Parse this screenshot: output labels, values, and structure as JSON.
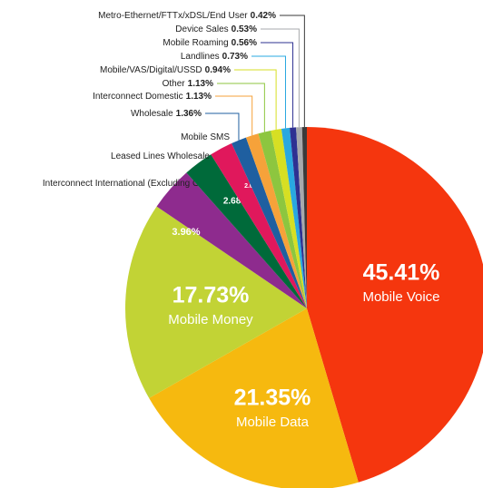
{
  "chart_data": {
    "type": "pie",
    "categories": [
      "Mobile Voice",
      "Mobile Data",
      "Mobile Money",
      "Interconnect International (Excluding ONA)",
      "Leased Lines Wholesale",
      "Mobile SMS",
      "Wholesale",
      "Interconnect Domestic",
      "Other",
      "Mobile/VAS/Digital/USSD",
      "Landlines",
      "Mobile Roaming",
      "Device Sales",
      "Metro-Ethernet/FTTx/xDSL/End User"
    ],
    "values": [
      45.41,
      21.35,
      17.73,
      3.96,
      2.68,
      2.06,
      1.36,
      1.13,
      1.13,
      0.94,
      0.73,
      0.56,
      0.53,
      0.42
    ],
    "value_labels": [
      "45.41%",
      "21.35%",
      "17.73%",
      "3.96%",
      "2.68%",
      "2.06%",
      "1.36%",
      "1.13%",
      "1.13%",
      "0.94%",
      "0.73%",
      "0.56%",
      "0.53%",
      "0.42%"
    ],
    "colors": [
      "#f5360e",
      "#f6b90f",
      "#c2d335",
      "#8e2b8e",
      "#006a3a",
      "#e0185c",
      "#1f5fa0",
      "#f6a23a",
      "#8dc63f",
      "#d7df23",
      "#29a8e0",
      "#2e3192",
      "#a7a9ac",
      "#3a3a3a"
    ]
  }
}
